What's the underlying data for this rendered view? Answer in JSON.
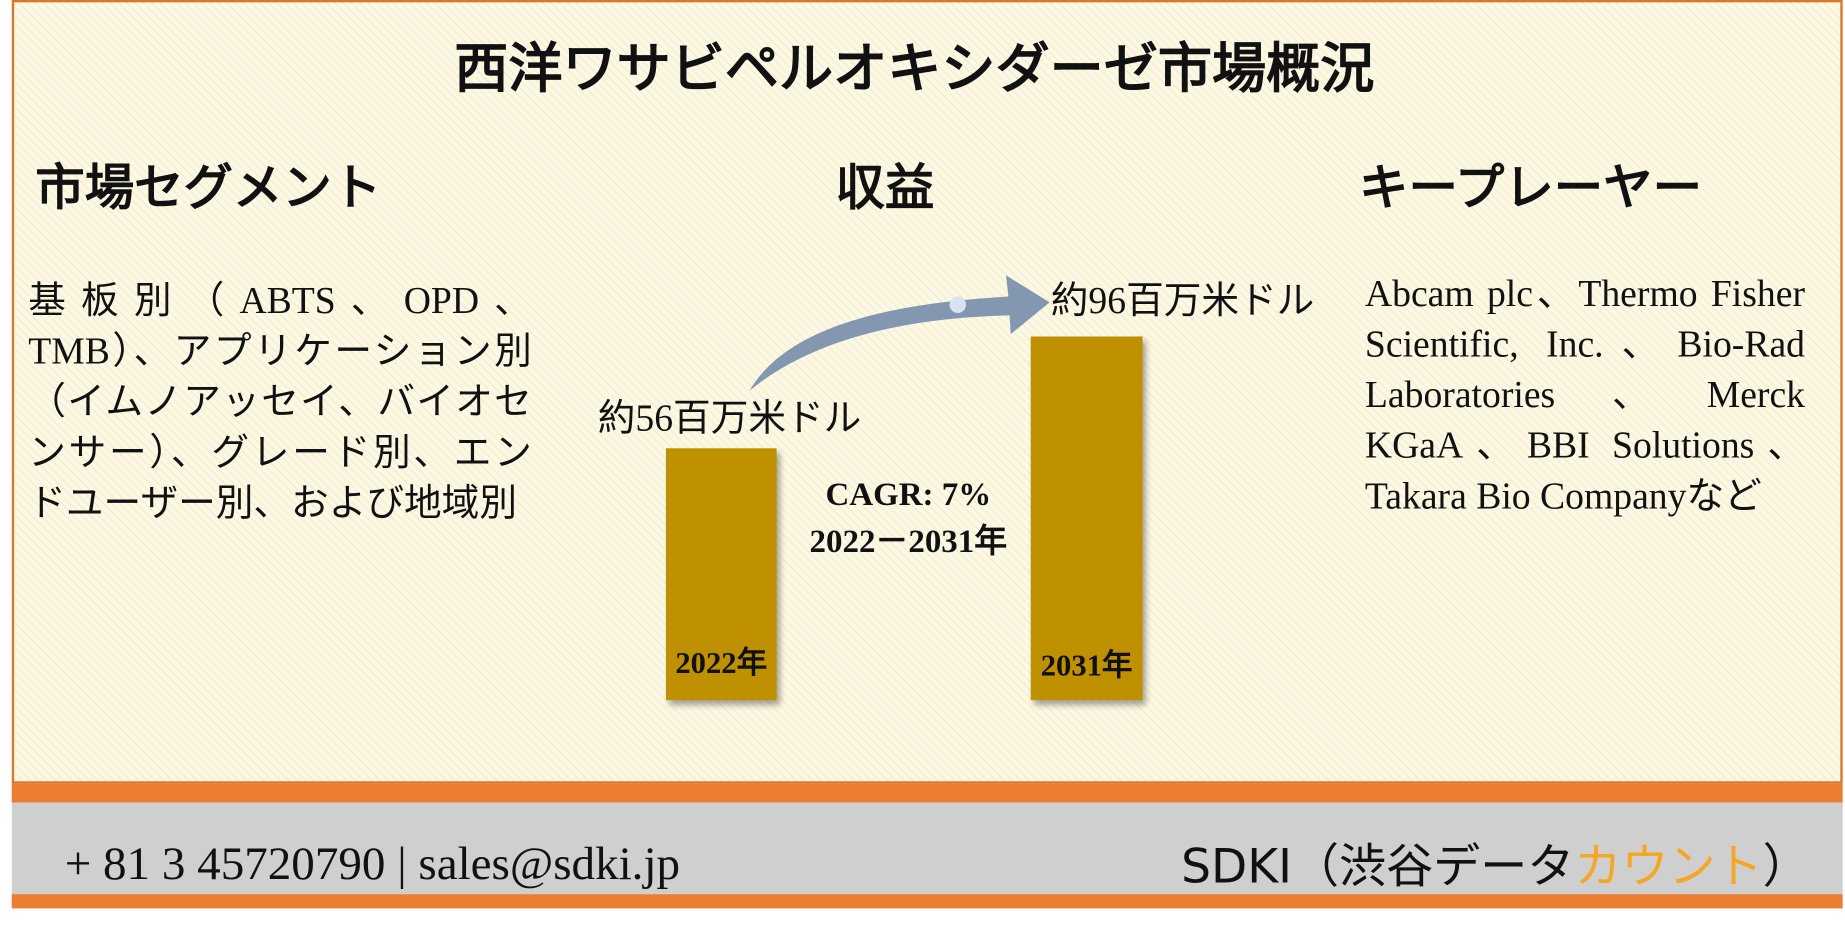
{
  "title": "西洋ワサビペルオキシダーゼ市場概況",
  "segments": {
    "heading": "市場セグメント",
    "text": "基板別（ABTS、OPD、TMB）、アプリケーション別（イムノアッセイ、バイオセンサー）、グレード別、エンドユーザー別、および地域別"
  },
  "revenue": {
    "heading": "収益",
    "start_value": "約56百万米ドル",
    "end_value": "約96百万米ドル",
    "cagr": "CAGR: 7%",
    "period": "2022－2031年",
    "start_year": "2022年",
    "end_year": "2031年"
  },
  "players": {
    "heading": "キープレーヤー",
    "text": "Abcam plc、Thermo Fisher Scientific, Inc.、Bio-Rad Laboratories、Merck KGaA、BBI Solutions、Takara Bio Companyなど"
  },
  "footer": {
    "contact": "+ 81 3 45720790 | sales@sdki.jp",
    "brand": "SDKI（渋谷データ",
    "brand_highlight": "カウント",
    "brand_close": "）"
  }
}
